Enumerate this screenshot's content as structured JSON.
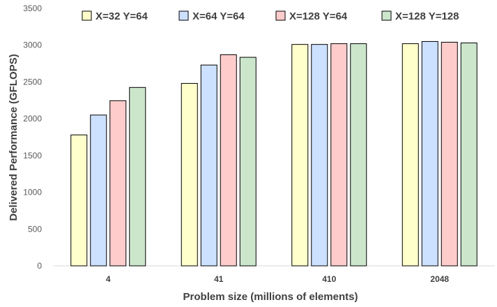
{
  "chart_data": {
    "type": "bar",
    "title": "",
    "xlabel": "Problem size (millions of elements)",
    "ylabel": "Delivered Performance (GFLOPS)",
    "categories": [
      "4",
      "41",
      "410",
      "2048"
    ],
    "ylim": [
      0,
      3500
    ],
    "yticks": [
      0,
      500,
      1000,
      1500,
      2000,
      2500,
      3000,
      3500
    ],
    "grid": false,
    "legend_position": "top",
    "series": [
      {
        "name": "X=32 Y=64",
        "color": "#ffffcc",
        "values": [
          1780,
          2480,
          3010,
          3020
        ]
      },
      {
        "name": "X=64 Y=64",
        "color": "#cce0ff",
        "values": [
          2050,
          2730,
          3010,
          3050
        ]
      },
      {
        "name": "X=128 Y=64",
        "color": "#ffcccc",
        "values": [
          2245,
          2870,
          3020,
          3040
        ]
      },
      {
        "name": "X=128 Y=128",
        "color": "#cce6cc",
        "values": [
          2425,
          2835,
          3020,
          3030
        ]
      }
    ]
  }
}
